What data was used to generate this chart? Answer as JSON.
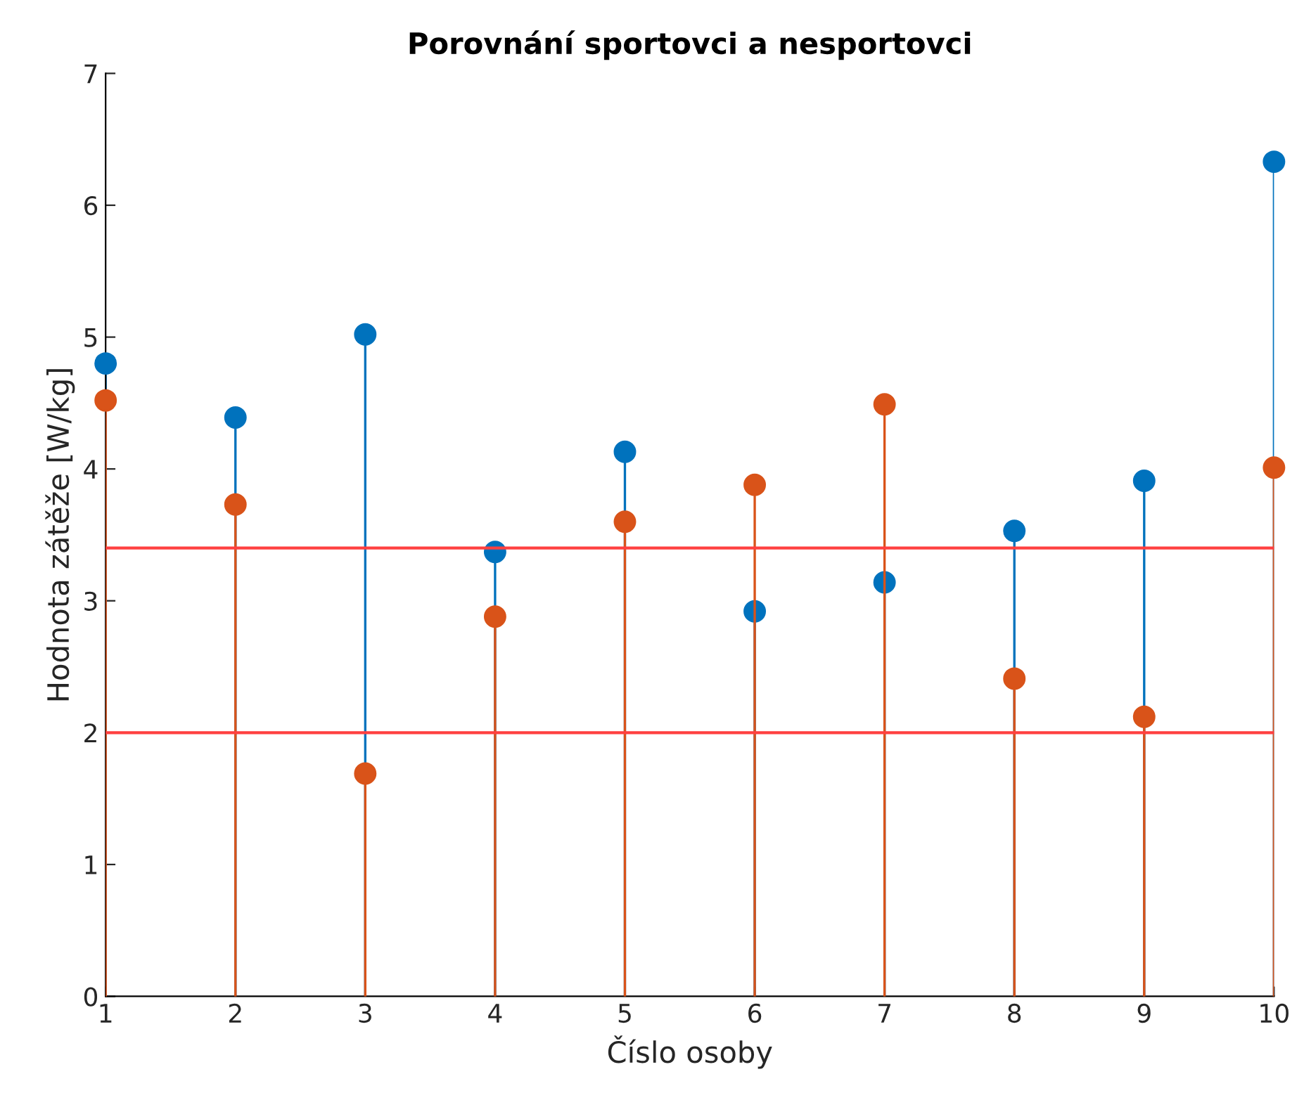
{
  "chart_data": {
    "type": "lollipop",
    "title": "Porovnání sportovci a nesportovci",
    "xlabel": "Číslo osoby",
    "ylabel": "Hodnota zátěže [W/kg]",
    "x": [
      1,
      2,
      3,
      4,
      5,
      6,
      7,
      8,
      9,
      10
    ],
    "series": [
      {
        "color": "#0072bd",
        "values": [
          4.8,
          4.39,
          5.02,
          3.37,
          4.13,
          2.92,
          3.14,
          3.53,
          3.91,
          6.33
        ]
      },
      {
        "color": "#d95319",
        "values": [
          4.52,
          3.73,
          1.69,
          2.88,
          3.6,
          3.88,
          4.49,
          2.41,
          2.12,
          4.01
        ]
      }
    ],
    "xlim": [
      1,
      10
    ],
    "xticks": [
      1,
      2,
      3,
      4,
      5,
      6,
      7,
      8,
      9,
      10
    ],
    "ylim": [
      0,
      7
    ],
    "yticks": [
      0,
      1,
      2,
      3,
      4,
      5,
      6,
      7
    ],
    "ref_lines": [
      {
        "axis": "y",
        "value": 3.4,
        "color": "#ff4040"
      },
      {
        "axis": "y",
        "value": 2.0,
        "color": "#ff4040"
      }
    ],
    "marker": "circle",
    "grid": false
  }
}
